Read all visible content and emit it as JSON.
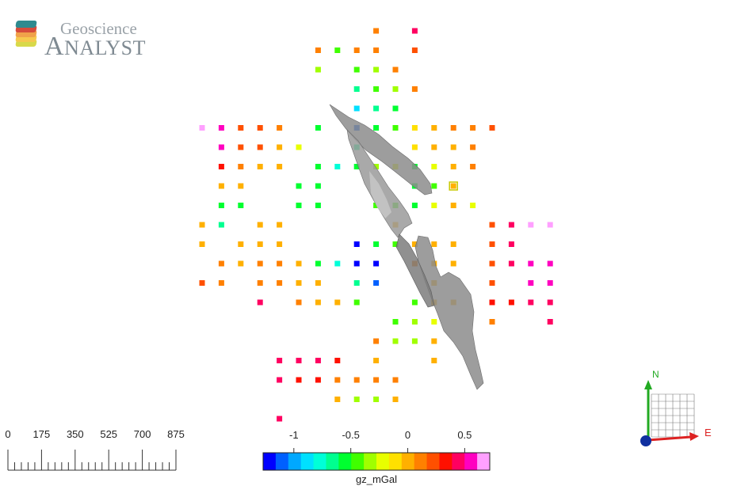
{
  "logo": {
    "title": "Geoscience",
    "subtitle_first": "A",
    "subtitle_rest": "NALYST",
    "stack_colors": [
      "#2e8a8f",
      "#d64b3b",
      "#f0a14a",
      "#f6c84e",
      "#d8d94a"
    ]
  },
  "scale_bar": {
    "labels": [
      "0",
      "175",
      "350",
      "525",
      "700",
      "875"
    ]
  },
  "colorbar": {
    "tick_labels": [
      "-1",
      "-0.5",
      "0",
      "0.5"
    ],
    "tick_values": [
      -1,
      -0.5,
      0,
      0.5
    ],
    "range": [
      -1.27,
      0.72
    ],
    "title": "gz_mGal",
    "colors": [
      "#0000ff",
      "#0060ff",
      "#00a8ff",
      "#00e0ff",
      "#00ffd8",
      "#00ff90",
      "#00ff30",
      "#40ff00",
      "#a0ff00",
      "#e8ff00",
      "#ffe000",
      "#ffb000",
      "#ff8000",
      "#ff5000",
      "#ff1000",
      "#ff0060",
      "#ff00c0",
      "#ffa0ff"
    ]
  },
  "orientation": {
    "north_label": "N",
    "east_label": "E",
    "north_color": "#22aa22",
    "east_color": "#dd2222",
    "origin_color": "#1030a0"
  },
  "stations": [
    {
      "col": 9,
      "row": 0,
      "v": 0.12
    },
    {
      "col": 11,
      "row": 0,
      "v": 0.45
    },
    {
      "col": 6,
      "row": 1,
      "v": 0.12
    },
    {
      "col": 7,
      "row": 1,
      "v": -0.45
    },
    {
      "col": 8,
      "row": 1,
      "v": 0.12
    },
    {
      "col": 9,
      "row": 1,
      "v": 0.12
    },
    {
      "col": 11,
      "row": 1,
      "v": 0.27
    },
    {
      "col": 6,
      "row": 2,
      "v": -0.3
    },
    {
      "col": 8,
      "row": 2,
      "v": -0.45
    },
    {
      "col": 9,
      "row": 2,
      "v": -0.3
    },
    {
      "col": 10,
      "row": 2,
      "v": 0.12
    },
    {
      "col": 8,
      "row": 3,
      "v": -0.7
    },
    {
      "col": 9,
      "row": 3,
      "v": -0.45
    },
    {
      "col": 10,
      "row": 3,
      "v": -0.35
    },
    {
      "col": 11,
      "row": 3,
      "v": 0.12
    },
    {
      "col": 8,
      "row": 4,
      "v": -0.9
    },
    {
      "col": 9,
      "row": 4,
      "v": -0.7
    },
    {
      "col": 10,
      "row": 4,
      "v": -0.55
    },
    {
      "col": 0,
      "row": 5,
      "v": 0.75
    },
    {
      "col": 1,
      "row": 5,
      "v": 0.5
    },
    {
      "col": 2,
      "row": 5,
      "v": 0.27
    },
    {
      "col": 3,
      "row": 5,
      "v": 0.2
    },
    {
      "col": 4,
      "row": 5,
      "v": 0.12
    },
    {
      "col": 6,
      "row": 5,
      "v": -0.55
    },
    {
      "col": 8,
      "row": 5,
      "v": -1.1
    },
    {
      "col": 9,
      "row": 5,
      "v": -0.55
    },
    {
      "col": 10,
      "row": 5,
      "v": -0.4
    },
    {
      "col": 11,
      "row": 5,
      "v": -0.1
    },
    {
      "col": 12,
      "row": 5,
      "v": 0.05
    },
    {
      "col": 13,
      "row": 5,
      "v": 0.12
    },
    {
      "col": 14,
      "row": 5,
      "v": 0.12
    },
    {
      "col": 15,
      "row": 5,
      "v": 0.27
    },
    {
      "col": 1,
      "row": 6,
      "v": 0.5
    },
    {
      "col": 2,
      "row": 6,
      "v": 0.27
    },
    {
      "col": 3,
      "row": 6,
      "v": 0.2
    },
    {
      "col": 4,
      "row": 6,
      "v": 0.05
    },
    {
      "col": 5,
      "row": 6,
      "v": -0.2
    },
    {
      "col": 8,
      "row": 6,
      "v": -0.7
    },
    {
      "col": 11,
      "row": 6,
      "v": -0.1
    },
    {
      "col": 12,
      "row": 6,
      "v": 0.05
    },
    {
      "col": 13,
      "row": 6,
      "v": 0.05
    },
    {
      "col": 14,
      "row": 6,
      "v": 0.12
    },
    {
      "col": 1,
      "row": 7,
      "v": 0.3
    },
    {
      "col": 2,
      "row": 7,
      "v": 0.12
    },
    {
      "col": 3,
      "row": 7,
      "v": 0.05
    },
    {
      "col": 4,
      "row": 7,
      "v": 0.05
    },
    {
      "col": 6,
      "row": 7,
      "v": -0.55
    },
    {
      "col": 7,
      "row": 7,
      "v": -0.8
    },
    {
      "col": 8,
      "row": 7,
      "v": -0.55
    },
    {
      "col": 9,
      "row": 7,
      "v": -0.35
    },
    {
      "col": 10,
      "row": 7,
      "v": -0.25
    },
    {
      "col": 11,
      "row": 7,
      "v": -0.55
    },
    {
      "col": 12,
      "row": 7,
      "v": -0.2
    },
    {
      "col": 13,
      "row": 7,
      "v": 0.05
    },
    {
      "col": 14,
      "row": 7,
      "v": 0.12
    },
    {
      "col": 1,
      "row": 8,
      "v": 0.05
    },
    {
      "col": 2,
      "row": 8,
      "v": 0.05
    },
    {
      "col": 5,
      "row": 8,
      "v": -0.55
    },
    {
      "col": 6,
      "row": 8,
      "v": -0.55
    },
    {
      "col": 11,
      "row": 8,
      "v": -0.55
    },
    {
      "col": 12,
      "row": 8,
      "v": -0.45
    },
    {
      "col": 13,
      "row": 8,
      "v": 0.05
    },
    {
      "col": 1,
      "row": 9,
      "v": -0.55
    },
    {
      "col": 2,
      "row": 9,
      "v": -0.55
    },
    {
      "col": 5,
      "row": 9,
      "v": -0.55
    },
    {
      "col": 6,
      "row": 9,
      "v": -0.55
    },
    {
      "col": 9,
      "row": 9,
      "v": -0.45
    },
    {
      "col": 10,
      "row": 9,
      "v": -0.4
    },
    {
      "col": 11,
      "row": 9,
      "v": -0.5
    },
    {
      "col": 12,
      "row": 9,
      "v": -0.2
    },
    {
      "col": 13,
      "row": 9,
      "v": 0.05
    },
    {
      "col": 14,
      "row": 9,
      "v": -0.2
    },
    {
      "col": 0,
      "row": 10,
      "v": 0.05
    },
    {
      "col": 1,
      "row": 10,
      "v": -0.7
    },
    {
      "col": 3,
      "row": 10,
      "v": 0.05
    },
    {
      "col": 4,
      "row": 10,
      "v": 0.05
    },
    {
      "col": 10,
      "row": 10,
      "v": 0.05
    },
    {
      "col": 15,
      "row": 10,
      "v": 0.2
    },
    {
      "col": 16,
      "row": 10,
      "v": 0.4
    },
    {
      "col": 17,
      "row": 10,
      "v": 0.62
    },
    {
      "col": 18,
      "row": 10,
      "v": 0.75
    },
    {
      "col": 0,
      "row": 11,
      "v": 0.05
    },
    {
      "col": 2,
      "row": 11,
      "v": 0.05
    },
    {
      "col": 3,
      "row": 11,
      "v": 0.05
    },
    {
      "col": 4,
      "row": 11,
      "v": 0.05
    },
    {
      "col": 8,
      "row": 11,
      "v": -1.25
    },
    {
      "col": 9,
      "row": 11,
      "v": -0.55
    },
    {
      "col": 10,
      "row": 11,
      "v": -0.4
    },
    {
      "col": 11,
      "row": 11,
      "v": 0.05
    },
    {
      "col": 12,
      "row": 11,
      "v": 0.05
    },
    {
      "col": 13,
      "row": 11,
      "v": 0.05
    },
    {
      "col": 15,
      "row": 11,
      "v": 0.22
    },
    {
      "col": 16,
      "row": 11,
      "v": 0.4
    },
    {
      "col": 1,
      "row": 12,
      "v": 0.12
    },
    {
      "col": 2,
      "row": 12,
      "v": 0.05
    },
    {
      "col": 3,
      "row": 12,
      "v": 0.12
    },
    {
      "col": 4,
      "row": 12,
      "v": 0.12
    },
    {
      "col": 5,
      "row": 12,
      "v": 0.05
    },
    {
      "col": 6,
      "row": 12,
      "v": -0.55
    },
    {
      "col": 7,
      "row": 12,
      "v": -0.75
    },
    {
      "col": 8,
      "row": 12,
      "v": -1.2
    },
    {
      "col": 9,
      "row": 12,
      "v": -1.2
    },
    {
      "col": 11,
      "row": 12,
      "v": 0.12
    },
    {
      "col": 12,
      "row": 12,
      "v": 0.05
    },
    {
      "col": 13,
      "row": 12,
      "v": 0.05
    },
    {
      "col": 15,
      "row": 12,
      "v": 0.22
    },
    {
      "col": 16,
      "row": 12,
      "v": 0.4
    },
    {
      "col": 17,
      "row": 12,
      "v": 0.5
    },
    {
      "col": 18,
      "row": 12,
      "v": 0.5
    },
    {
      "col": 0,
      "row": 13,
      "v": 0.22
    },
    {
      "col": 1,
      "row": 13,
      "v": 0.12
    },
    {
      "col": 3,
      "row": 13,
      "v": 0.12
    },
    {
      "col": 4,
      "row": 13,
      "v": 0.12
    },
    {
      "col": 5,
      "row": 13,
      "v": 0.05
    },
    {
      "col": 6,
      "row": 13,
      "v": 0.05
    },
    {
      "col": 8,
      "row": 13,
      "v": -0.7
    },
    {
      "col": 9,
      "row": 13,
      "v": -1.1
    },
    {
      "col": 12,
      "row": 13,
      "v": 0.05
    },
    {
      "col": 15,
      "row": 13,
      "v": 0.22
    },
    {
      "col": 17,
      "row": 13,
      "v": 0.5
    },
    {
      "col": 18,
      "row": 13,
      "v": 0.5
    },
    {
      "col": 3,
      "row": 14,
      "v": 0.4
    },
    {
      "col": 5,
      "row": 14,
      "v": 0.12
    },
    {
      "col": 6,
      "row": 14,
      "v": 0.05
    },
    {
      "col": 7,
      "row": 14,
      "v": 0.05
    },
    {
      "col": 8,
      "row": 14,
      "v": -0.45
    },
    {
      "col": 11,
      "row": 14,
      "v": -0.45
    },
    {
      "col": 12,
      "row": 14,
      "v": 0.05
    },
    {
      "col": 13,
      "row": 14,
      "v": 0.05
    },
    {
      "col": 15,
      "row": 14,
      "v": 0.3
    },
    {
      "col": 16,
      "row": 14,
      "v": 0.3
    },
    {
      "col": 17,
      "row": 14,
      "v": 0.45
    },
    {
      "col": 18,
      "row": 14,
      "v": 0.45
    },
    {
      "col": 10,
      "row": 15,
      "v": -0.45
    },
    {
      "col": 11,
      "row": 15,
      "v": -0.3
    },
    {
      "col": 12,
      "row": 15,
      "v": -0.2
    },
    {
      "col": 15,
      "row": 15,
      "v": 0.12
    },
    {
      "col": 18,
      "row": 15,
      "v": 0.45
    },
    {
      "col": 9,
      "row": 16,
      "v": 0.12
    },
    {
      "col": 10,
      "row": 16,
      "v": -0.3
    },
    {
      "col": 11,
      "row": 16,
      "v": -0.3
    },
    {
      "col": 12,
      "row": 16,
      "v": 0.05
    },
    {
      "col": 4,
      "row": 17,
      "v": 0.4
    },
    {
      "col": 5,
      "row": 17,
      "v": 0.4
    },
    {
      "col": 6,
      "row": 17,
      "v": 0.4
    },
    {
      "col": 7,
      "row": 17,
      "v": 0.3
    },
    {
      "col": 9,
      "row": 17,
      "v": 0.05
    },
    {
      "col": 12,
      "row": 17,
      "v": 0.05
    },
    {
      "col": 4,
      "row": 18,
      "v": 0.4
    },
    {
      "col": 5,
      "row": 18,
      "v": 0.35
    },
    {
      "col": 6,
      "row": 18,
      "v": 0.3
    },
    {
      "col": 7,
      "row": 18,
      "v": 0.12
    },
    {
      "col": 8,
      "row": 18,
      "v": 0.12
    },
    {
      "col": 9,
      "row": 18,
      "v": 0.12
    },
    {
      "col": 10,
      "row": 18,
      "v": 0.12
    },
    {
      "col": 7,
      "row": 19,
      "v": 0.05
    },
    {
      "col": 8,
      "row": 19,
      "v": -0.3
    },
    {
      "col": 9,
      "row": 19,
      "v": -0.3
    },
    {
      "col": 10,
      "row": 19,
      "v": 0.05
    },
    {
      "col": 4,
      "row": 20,
      "v": 0.4
    }
  ],
  "selected_station": {
    "col": 13,
    "row": 8
  }
}
